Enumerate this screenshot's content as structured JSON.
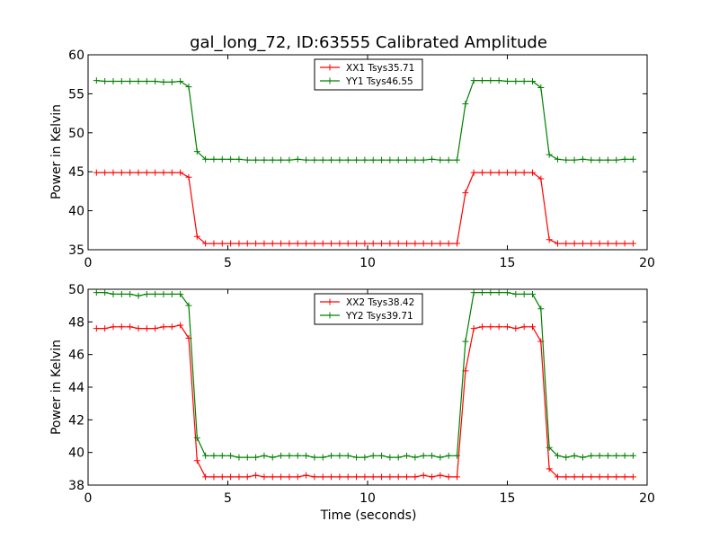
{
  "chart_data": [
    {
      "type": "line",
      "title": "gal_long_72, ID:63555 Calibrated Amplitude",
      "xlabel": "",
      "ylabel": "Power in Kelvin",
      "xlim": [
        0,
        20
      ],
      "ylim": [
        35,
        60
      ],
      "xticks": [
        "0",
        "5",
        "10",
        "15",
        "20"
      ],
      "yticks": [
        "35",
        "40",
        "45",
        "50",
        "55",
        "60"
      ],
      "grid": false,
      "legend_position": "top-center",
      "series": [
        {
          "name": "XX1 Tsys35.71",
          "color": "#ff0000",
          "x": [
            0.3,
            0.6,
            0.9,
            1.2,
            1.5,
            1.8,
            2.1,
            2.4,
            2.7,
            3.0,
            3.3,
            3.6,
            3.9,
            4.2,
            4.5,
            4.8,
            5.1,
            5.4,
            5.7,
            6.0,
            6.3,
            6.6,
            6.9,
            7.2,
            7.5,
            7.8,
            8.1,
            8.4,
            8.7,
            9.0,
            9.3,
            9.6,
            9.9,
            10.2,
            10.5,
            10.8,
            11.1,
            11.4,
            11.7,
            12.0,
            12.3,
            12.6,
            12.9,
            13.2,
            13.5,
            13.8,
            14.1,
            14.4,
            14.7,
            15.0,
            15.3,
            15.6,
            15.9,
            16.2,
            16.5,
            16.8,
            17.1,
            17.4,
            17.7,
            18.0,
            18.3,
            18.6,
            18.9,
            19.2,
            19.5
          ],
          "y": [
            44.9,
            44.9,
            44.9,
            44.9,
            44.9,
            44.9,
            44.9,
            44.9,
            44.9,
            44.9,
            44.9,
            44.3,
            36.7,
            35.8,
            35.8,
            35.8,
            35.8,
            35.8,
            35.8,
            35.8,
            35.8,
            35.8,
            35.8,
            35.8,
            35.8,
            35.8,
            35.8,
            35.8,
            35.8,
            35.8,
            35.8,
            35.8,
            35.8,
            35.8,
            35.8,
            35.8,
            35.8,
            35.8,
            35.8,
            35.8,
            35.8,
            35.8,
            35.8,
            35.8,
            42.3,
            44.9,
            44.9,
            44.9,
            44.9,
            44.9,
            44.9,
            44.9,
            44.9,
            44.1,
            36.3,
            35.8,
            35.8,
            35.8,
            35.8,
            35.8,
            35.8,
            35.8,
            35.8,
            35.8,
            35.8
          ]
        },
        {
          "name": "YY1 Tsys46.55",
          "color": "#008000",
          "x": [
            0.3,
            0.6,
            0.9,
            1.2,
            1.5,
            1.8,
            2.1,
            2.4,
            2.7,
            3.0,
            3.3,
            3.6,
            3.9,
            4.2,
            4.5,
            4.8,
            5.1,
            5.4,
            5.7,
            6.0,
            6.3,
            6.6,
            6.9,
            7.2,
            7.5,
            7.8,
            8.1,
            8.4,
            8.7,
            9.0,
            9.3,
            9.6,
            9.9,
            10.2,
            10.5,
            10.8,
            11.1,
            11.4,
            11.7,
            12.0,
            12.3,
            12.6,
            12.9,
            13.2,
            13.5,
            13.8,
            14.1,
            14.4,
            14.7,
            15.0,
            15.3,
            15.6,
            15.9,
            16.2,
            16.5,
            16.8,
            17.1,
            17.4,
            17.7,
            18.0,
            18.3,
            18.6,
            18.9,
            19.2,
            19.5
          ],
          "y": [
            56.7,
            56.6,
            56.6,
            56.6,
            56.6,
            56.6,
            56.6,
            56.6,
            56.5,
            56.5,
            56.6,
            55.9,
            47.6,
            46.6,
            46.6,
            46.6,
            46.6,
            46.6,
            46.5,
            46.5,
            46.5,
            46.5,
            46.5,
            46.5,
            46.6,
            46.5,
            46.5,
            46.5,
            46.5,
            46.5,
            46.5,
            46.5,
            46.5,
            46.5,
            46.5,
            46.5,
            46.5,
            46.5,
            46.5,
            46.5,
            46.6,
            46.5,
            46.5,
            46.5,
            53.7,
            56.7,
            56.7,
            56.7,
            56.7,
            56.6,
            56.6,
            56.6,
            56.6,
            55.8,
            47.2,
            46.6,
            46.5,
            46.5,
            46.6,
            46.5,
            46.5,
            46.5,
            46.5,
            46.6,
            46.6
          ]
        }
      ]
    },
    {
      "type": "line",
      "title": "",
      "xlabel": "Time (seconds)",
      "ylabel": "Power in Kelvin",
      "xlim": [
        0,
        20
      ],
      "ylim": [
        38,
        50
      ],
      "xticks": [
        "0",
        "5",
        "10",
        "15",
        "20"
      ],
      "yticks": [
        "38",
        "40",
        "42",
        "44",
        "46",
        "48",
        "50"
      ],
      "grid": false,
      "legend_position": "top-center",
      "series": [
        {
          "name": "XX2 Tsys38.42",
          "color": "#ff0000",
          "x": [
            0.3,
            0.6,
            0.9,
            1.2,
            1.5,
            1.8,
            2.1,
            2.4,
            2.7,
            3.0,
            3.3,
            3.6,
            3.9,
            4.2,
            4.5,
            4.8,
            5.1,
            5.4,
            5.7,
            6.0,
            6.3,
            6.6,
            6.9,
            7.2,
            7.5,
            7.8,
            8.1,
            8.4,
            8.7,
            9.0,
            9.3,
            9.6,
            9.9,
            10.2,
            10.5,
            10.8,
            11.1,
            11.4,
            11.7,
            12.0,
            12.3,
            12.6,
            12.9,
            13.2,
            13.5,
            13.8,
            14.1,
            14.4,
            14.7,
            15.0,
            15.3,
            15.6,
            15.9,
            16.2,
            16.5,
            16.8,
            17.1,
            17.4,
            17.7,
            18.0,
            18.3,
            18.6,
            18.9,
            19.2,
            19.5
          ],
          "y": [
            47.6,
            47.6,
            47.7,
            47.7,
            47.7,
            47.6,
            47.6,
            47.6,
            47.7,
            47.7,
            47.8,
            47.0,
            39.5,
            38.5,
            38.5,
            38.5,
            38.5,
            38.5,
            38.5,
            38.6,
            38.5,
            38.5,
            38.5,
            38.5,
            38.5,
            38.6,
            38.5,
            38.5,
            38.5,
            38.5,
            38.5,
            38.5,
            38.5,
            38.5,
            38.5,
            38.5,
            38.5,
            38.5,
            38.5,
            38.6,
            38.5,
            38.6,
            38.5,
            38.5,
            45.0,
            47.6,
            47.7,
            47.7,
            47.7,
            47.7,
            47.6,
            47.7,
            47.7,
            46.8,
            39.0,
            38.5,
            38.5,
            38.5,
            38.5,
            38.5,
            38.5,
            38.5,
            38.5,
            38.5,
            38.5
          ]
        },
        {
          "name": "YY2 Tsys39.71",
          "color": "#008000",
          "x": [
            0.3,
            0.6,
            0.9,
            1.2,
            1.5,
            1.8,
            2.1,
            2.4,
            2.7,
            3.0,
            3.3,
            3.6,
            3.9,
            4.2,
            4.5,
            4.8,
            5.1,
            5.4,
            5.7,
            6.0,
            6.3,
            6.6,
            6.9,
            7.2,
            7.5,
            7.8,
            8.1,
            8.4,
            8.7,
            9.0,
            9.3,
            9.6,
            9.9,
            10.2,
            10.5,
            10.8,
            11.1,
            11.4,
            11.7,
            12.0,
            12.3,
            12.6,
            12.9,
            13.2,
            13.5,
            13.8,
            14.1,
            14.4,
            14.7,
            15.0,
            15.3,
            15.6,
            15.9,
            16.2,
            16.5,
            16.8,
            17.1,
            17.4,
            17.7,
            18.0,
            18.3,
            18.6,
            18.9,
            19.2,
            19.5
          ],
          "y": [
            49.8,
            49.8,
            49.7,
            49.7,
            49.7,
            49.6,
            49.7,
            49.7,
            49.7,
            49.7,
            49.7,
            49.0,
            40.9,
            39.8,
            39.8,
            39.8,
            39.8,
            39.7,
            39.7,
            39.7,
            39.8,
            39.7,
            39.8,
            39.8,
            39.8,
            39.8,
            39.7,
            39.7,
            39.8,
            39.8,
            39.8,
            39.7,
            39.7,
            39.8,
            39.8,
            39.7,
            39.7,
            39.8,
            39.7,
            39.8,
            39.8,
            39.7,
            39.8,
            39.8,
            46.8,
            49.8,
            49.8,
            49.8,
            49.8,
            49.8,
            49.7,
            49.7,
            49.7,
            48.8,
            40.3,
            39.8,
            39.7,
            39.8,
            39.7,
            39.8,
            39.8,
            39.8,
            39.8,
            39.8,
            39.8
          ]
        }
      ]
    }
  ]
}
